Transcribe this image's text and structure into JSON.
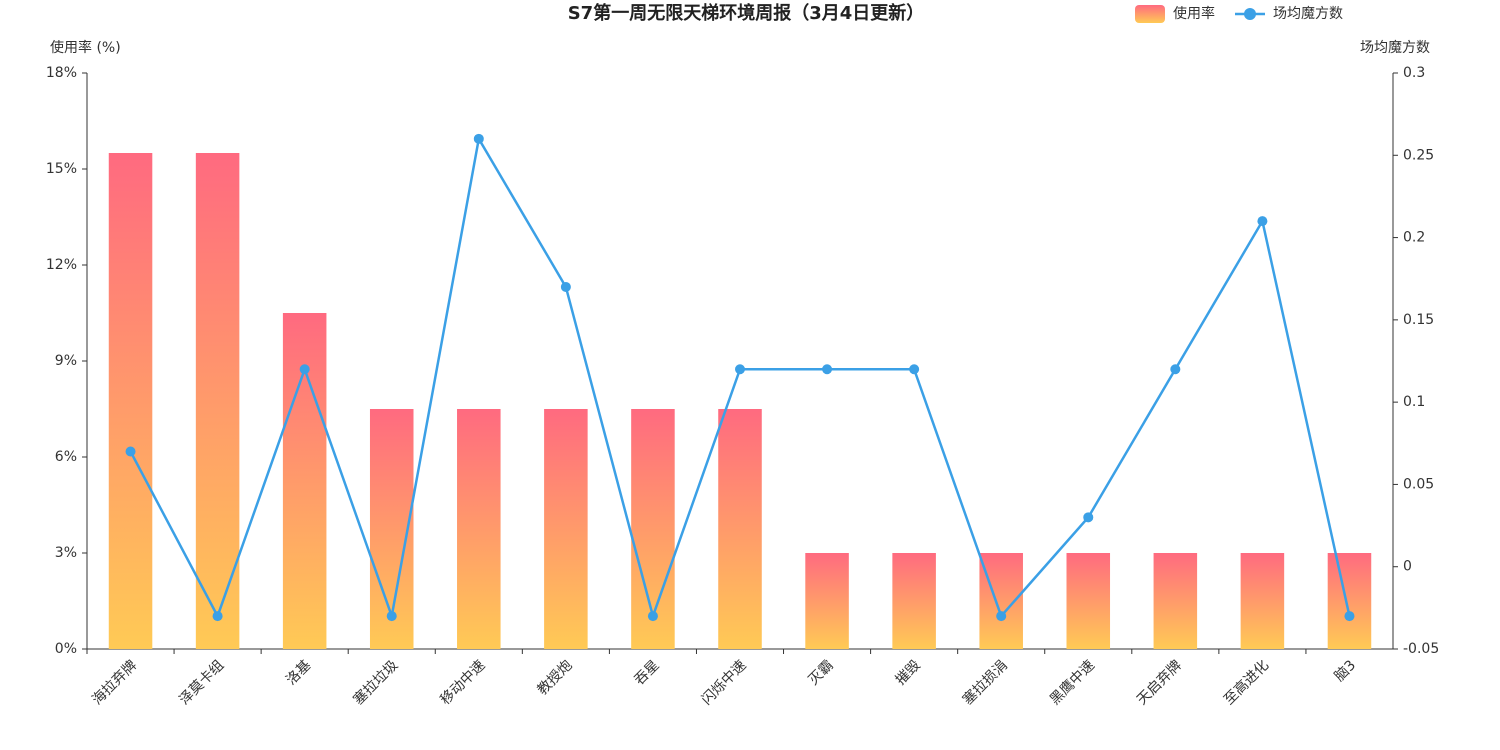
{
  "chart_data": {
    "type": "combo",
    "title": "S7第一周无限天梯环境周报（3月4日更新）",
    "y_label": "使用率 (%)",
    "y2_label": "场均魔方数",
    "categories": [
      "海拉弃牌",
      "泽莫卡组",
      "洛基",
      "塞拉垃圾",
      "移动中速",
      "教授炮",
      "吞星",
      "闪烁中速",
      "灭霸",
      "摧毁",
      "塞拉损涓",
      "黑鹰中速",
      "天启弃牌",
      "至高进化",
      "脑3"
    ],
    "series": [
      {
        "name": "使用率",
        "type": "bar",
        "gradient": [
          "#ff6a80",
          "#ffca55"
        ],
        "values": [
          15.5,
          15.5,
          10.5,
          7.5,
          7.5,
          7.5,
          7.5,
          7.5,
          3,
          3,
          3,
          3,
          3,
          3,
          3
        ]
      },
      {
        "name": "场均魔方数",
        "type": "line",
        "axis": "y2",
        "color": "#3ba0e6",
        "values": [
          0.07,
          -0.03,
          0.12,
          -0.03,
          0.26,
          0.17,
          -0.03,
          0.12,
          0.12,
          0.12,
          -0.03,
          0.03,
          0.12,
          0.21,
          -0.03
        ]
      }
    ],
    "ylim": [
      0,
      18
    ],
    "yticks": [
      {
        "value": 0,
        "label": "0%"
      },
      {
        "value": 3,
        "label": "3%"
      },
      {
        "value": 6,
        "label": "6%"
      },
      {
        "value": 9,
        "label": "9%"
      },
      {
        "value": 12,
        "label": "12%"
      },
      {
        "value": 15,
        "label": "15%"
      },
      {
        "value": 18,
        "label": "18%"
      }
    ],
    "y2lim": [
      -0.05,
      0.3
    ],
    "y2ticks": [
      -0.05,
      0,
      0.05,
      0.1,
      0.15,
      0.2,
      0.25,
      0.3
    ],
    "legend": "top-right"
  }
}
